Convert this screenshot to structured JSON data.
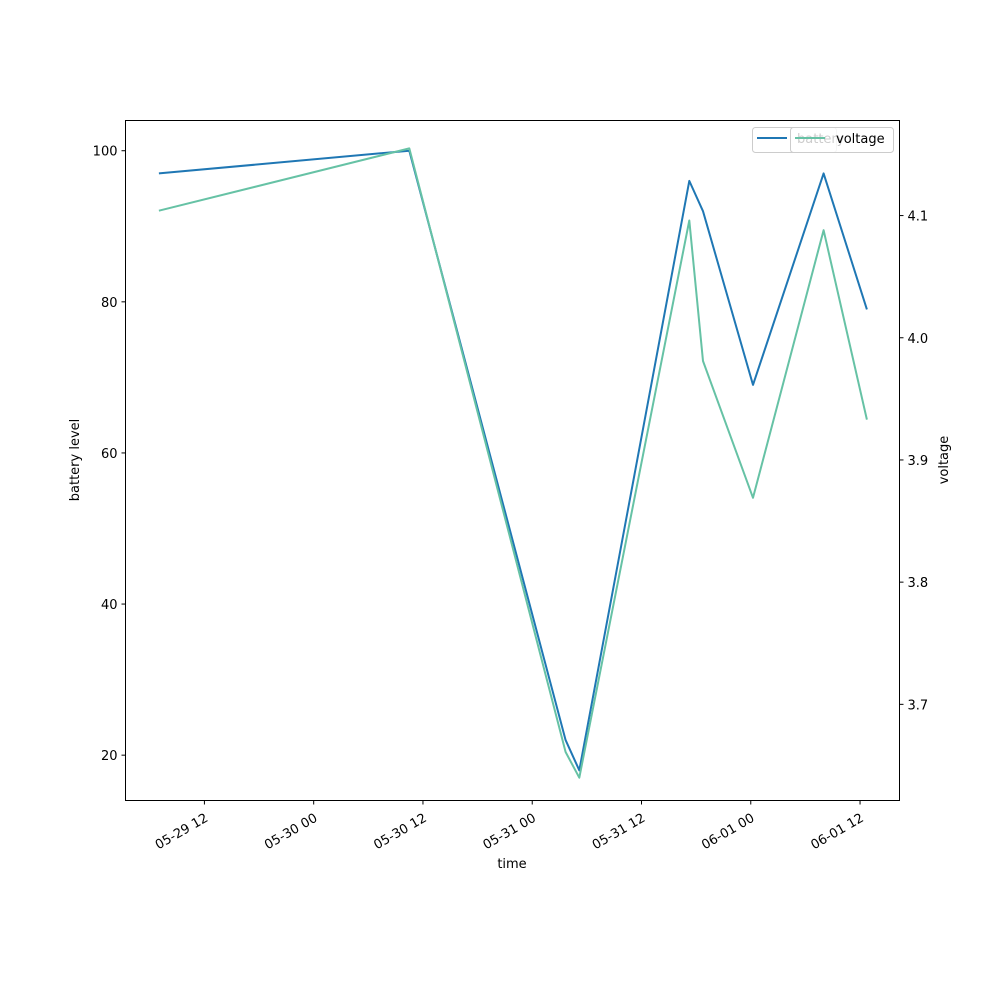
{
  "chart_data": {
    "type": "line",
    "xlabel": "time",
    "ylabel_left": "battery level",
    "ylabel_right": "voltage",
    "x_ticks": [
      "05-29 12",
      "05-30 00",
      "05-30 12",
      "05-31 00",
      "05-31 12",
      "06-01 00",
      "06-01 12"
    ],
    "x_range": [
      "2024-05-29 03:20",
      "2024-06-01 16:20"
    ],
    "y_left_ticks": [
      20,
      40,
      60,
      80,
      100
    ],
    "y_left_range": [
      14,
      104
    ],
    "y_right_ticks": [
      3.7,
      3.8,
      3.9,
      4.0,
      4.1
    ],
    "y_right_range": [
      3.6213,
      4.1778
    ],
    "x": [
      "2024-05-29 07:00",
      "2024-05-30 10:30",
      "2024-05-31 03:40",
      "2024-05-31 05:10",
      "2024-05-31 17:15",
      "2024-05-31 18:45",
      "2024-06-01 00:15",
      "2024-06-01 08:00",
      "2024-06-01 12:45"
    ],
    "series": [
      {
        "name": "battery",
        "axis": "left",
        "color": "#1f77b4",
        "values": [
          97,
          100,
          22,
          18,
          96,
          92,
          69,
          97,
          79
        ]
      },
      {
        "name": "voltage",
        "axis": "right",
        "color": "#66c2a5",
        "values": [
          4.104,
          4.155,
          3.661,
          3.64,
          4.096,
          3.981,
          3.869,
          4.088,
          3.933
        ]
      }
    ],
    "legend_position": "top-right"
  }
}
